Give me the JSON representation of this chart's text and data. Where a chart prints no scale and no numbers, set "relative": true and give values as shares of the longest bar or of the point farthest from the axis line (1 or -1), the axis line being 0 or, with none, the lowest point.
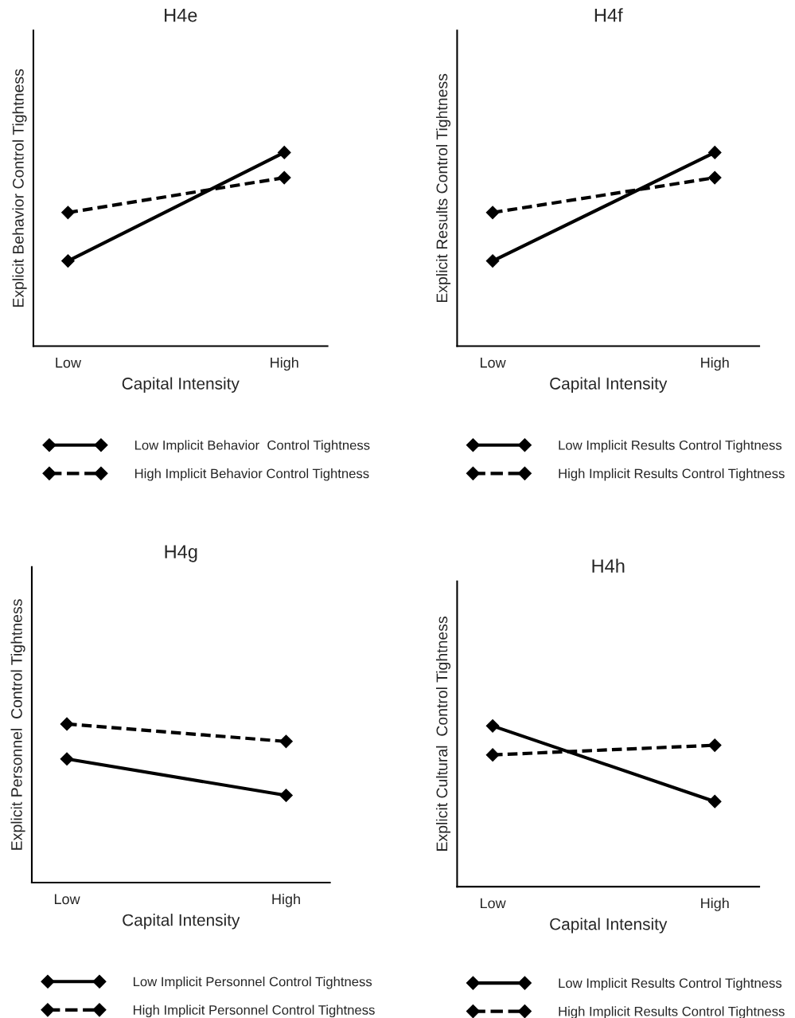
{
  "chart_data": [
    {
      "type": "line",
      "title": "H4e",
      "xlabel": "Capital Intensity",
      "ylabel": "Explicit Behavior Control Tightness",
      "categories": [
        "Low",
        "High"
      ],
      "relative": true,
      "marker": "diamond",
      "legend": "bottom",
      "grid": false,
      "series": [
        {
          "name": "Low Implicit Behavior  Control Tightness",
          "color": "#000000",
          "line_style": "solid",
          "values": [
            0.44,
            1
          ]
        },
        {
          "name": "High Implicit Behavior Control Tightness",
          "color": "#000000",
          "line_style": "dashed",
          "values": [
            0.69,
            0.87
          ]
        }
      ]
    },
    {
      "type": "line",
      "title": "H4f",
      "xlabel": "Capital Intensity",
      "ylabel": "Explicit Results Control Tightness",
      "categories": [
        "Low",
        "High"
      ],
      "relative": true,
      "marker": "diamond",
      "legend": "bottom",
      "grid": false,
      "series": [
        {
          "name": "Low Implicit Results Control Tightness",
          "color": "#000000",
          "line_style": "solid",
          "values": [
            0.44,
            1
          ]
        },
        {
          "name": "High Implicit Results Control Tightness",
          "color": "#000000",
          "line_style": "dashed",
          "values": [
            0.69,
            0.87
          ]
        }
      ]
    },
    {
      "type": "line",
      "title": "H4g",
      "xlabel": "Capital Intensity",
      "ylabel": "Explicit Personnel  Control Tightness",
      "categories": [
        "Low",
        "High"
      ],
      "relative": true,
      "marker": "diamond",
      "legend": "bottom",
      "grid": false,
      "series": [
        {
          "name": "Low Implicit Personnel Control Tightness",
          "color": "#000000",
          "line_style": "solid",
          "values": [
            0.78,
            0.55
          ]
        },
        {
          "name": "High Implicit Personnel Control Tightness",
          "color": "#000000",
          "line_style": "dashed",
          "values": [
            1,
            0.89
          ]
        }
      ]
    },
    {
      "type": "line",
      "title": "H4h",
      "xlabel": "Capital Intensity",
      "ylabel": "Explicit Cultural  Control Tightness",
      "categories": [
        "Low",
        "High"
      ],
      "relative": true,
      "marker": "diamond",
      "legend": "bottom",
      "grid": false,
      "series": [
        {
          "name": "Low Implicit Results Control Tightness",
          "color": "#000000",
          "line_style": "solid",
          "values": [
            1,
            0.53
          ]
        },
        {
          "name": "High Implicit Results Control Tightness",
          "color": "#000000",
          "line_style": "dashed",
          "values": [
            0.82,
            0.88
          ]
        }
      ]
    }
  ]
}
